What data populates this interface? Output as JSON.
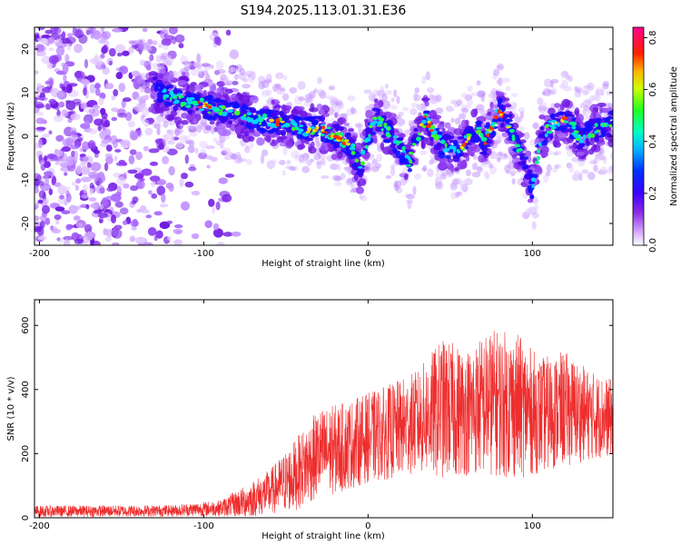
{
  "title": "S194.2025.113.01.31.E36",
  "chart_data": [
    {
      "type": "heatmap",
      "xlabel": "Height of straight line (km)",
      "ylabel": "Frequency (Hz)",
      "xlim": [
        -203,
        149
      ],
      "ylim": [
        -25,
        25
      ],
      "xticks": [
        -200,
        -100,
        0,
        100
      ],
      "yticks": [
        -20,
        -10,
        0,
        10,
        20
      ],
      "colorbar": {
        "label": "Normalized spectral amplitude",
        "range": [
          0.0,
          0.84
        ],
        "ticks": [
          "0.0",
          "0.2",
          "0.4",
          "0.6",
          "0.8"
        ],
        "colormap": [
          "#ffffff",
          "#c080ff",
          "#6000ff",
          "#0000ff",
          "#00e0ff",
          "#00ff60",
          "#ffff00",
          "#ff0000",
          "#ff00a0"
        ]
      },
      "ridge_center_hz": [
        [
          -130,
          11
        ],
        [
          -120,
          9
        ],
        [
          -110,
          8
        ],
        [
          -100,
          7
        ],
        [
          -90,
          6
        ],
        [
          -80,
          5
        ],
        [
          -70,
          4
        ],
        [
          -60,
          3.5
        ],
        [
          -50,
          2.5
        ],
        [
          -40,
          1.5
        ],
        [
          -30,
          2
        ],
        [
          -20,
          0
        ],
        [
          -10,
          -2
        ],
        [
          -5,
          -8
        ],
        [
          0,
          0
        ],
        [
          5,
          4
        ],
        [
          10,
          2
        ],
        [
          15,
          0
        ],
        [
          20,
          -3
        ],
        [
          25,
          -6
        ],
        [
          30,
          0
        ],
        [
          35,
          4
        ],
        [
          40,
          1
        ],
        [
          45,
          -2
        ],
        [
          55,
          -3
        ],
        [
          62,
          0
        ],
        [
          67,
          2
        ],
        [
          70,
          -2
        ],
        [
          75,
          2
        ],
        [
          80,
          6
        ],
        [
          85,
          3
        ],
        [
          90,
          -1
        ],
        [
          95,
          -6
        ],
        [
          100,
          -12
        ],
        [
          105,
          -1
        ],
        [
          110,
          2
        ],
        [
          115,
          3
        ],
        [
          120,
          4
        ],
        [
          125,
          2
        ],
        [
          130,
          -1
        ],
        [
          135,
          1
        ],
        [
          140,
          2
        ],
        [
          149,
          3
        ]
      ],
      "noise_region_km": [
        -203,
        -95
      ]
    },
    {
      "type": "line",
      "xlabel": "Height of straight line (km)",
      "ylabel": "SNR (10 * v/v)",
      "xlim": [
        -203,
        149
      ],
      "ylim": [
        0,
        680
      ],
      "xticks": [
        -200,
        -100,
        0,
        100
      ],
      "yticks": [
        0,
        200,
        400,
        600
      ],
      "color": "#ee2d2d",
      "envelope": [
        {
          "x": -203,
          "base": 20,
          "amp": 18
        },
        {
          "x": -120,
          "base": 22,
          "amp": 18
        },
        {
          "x": -90,
          "base": 30,
          "amp": 25
        },
        {
          "x": -75,
          "base": 50,
          "amp": 50
        },
        {
          "x": -60,
          "base": 80,
          "amp": 70
        },
        {
          "x": -45,
          "base": 130,
          "amp": 110
        },
        {
          "x": -30,
          "base": 200,
          "amp": 140
        },
        {
          "x": -15,
          "base": 220,
          "amp": 140
        },
        {
          "x": 0,
          "base": 250,
          "amp": 140
        },
        {
          "x": 15,
          "base": 270,
          "amp": 150
        },
        {
          "x": 30,
          "base": 300,
          "amp": 160
        },
        {
          "x": 45,
          "base": 340,
          "amp": 220
        },
        {
          "x": 60,
          "base": 330,
          "amp": 200
        },
        {
          "x": 75,
          "base": 360,
          "amp": 230
        },
        {
          "x": 90,
          "base": 350,
          "amp": 230
        },
        {
          "x": 105,
          "base": 320,
          "amp": 180
        },
        {
          "x": 120,
          "base": 340,
          "amp": 180
        },
        {
          "x": 135,
          "base": 320,
          "amp": 140
        },
        {
          "x": 149,
          "base": 310,
          "amp": 120
        }
      ]
    }
  ]
}
